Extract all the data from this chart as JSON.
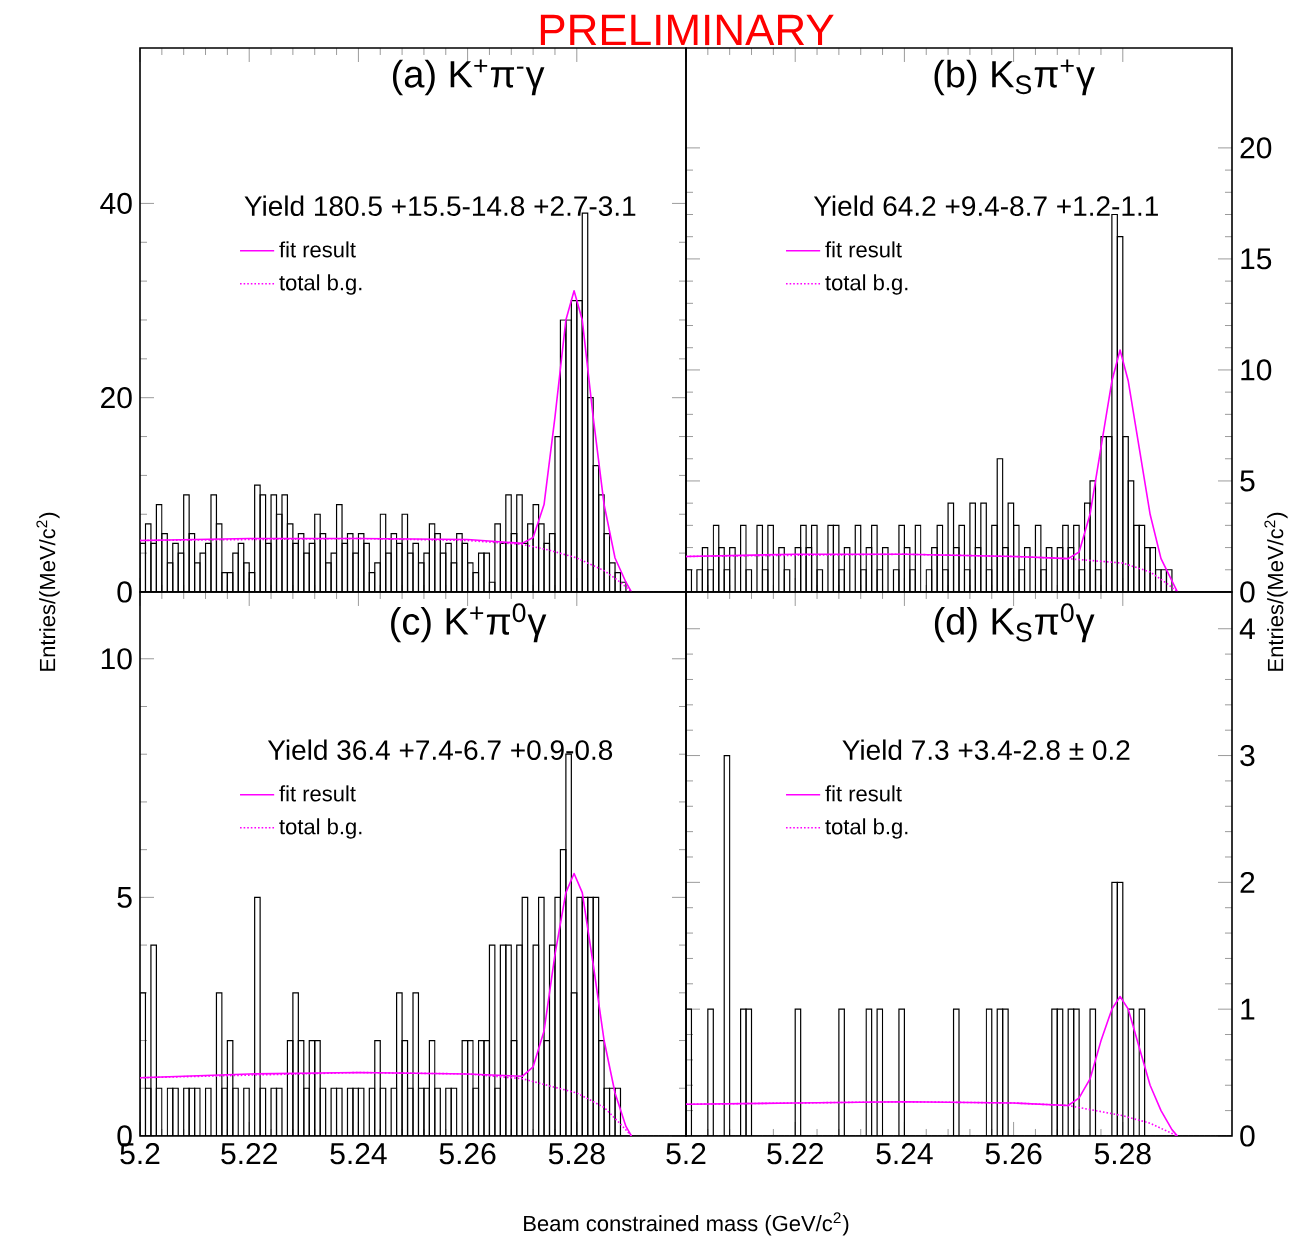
{
  "chart_data": [
    {
      "type": "histogram",
      "title": "(a) K$^{+}$π$^{-}$γ",
      "ylabel": "Entries/(MeV/c$^{2}$)",
      "annotations": [
        "Yield 180.5 +15.5-14.8 +2.7-3.1",
        "PRELIMINARY"
      ],
      "bins": [
        5.2,
        5.201,
        5.202,
        5.203,
        5.204,
        5.205,
        5.206,
        5.207,
        5.208,
        5.209,
        5.21,
        5.211,
        5.212,
        5.213,
        5.214,
        5.215,
        5.216,
        5.217,
        5.218,
        5.219,
        5.22,
        5.221,
        5.222,
        5.223,
        5.224,
        5.225,
        5.226,
        5.227,
        5.228,
        5.229,
        5.23,
        5.231,
        5.232,
        5.233,
        5.234,
        5.235,
        5.236,
        5.237,
        5.238,
        5.239,
        5.24,
        5.241,
        5.242,
        5.243,
        5.244,
        5.245,
        5.246,
        5.247,
        5.248,
        5.249,
        5.25,
        5.251,
        5.252,
        5.253,
        5.254,
        5.255,
        5.256,
        5.257,
        5.258,
        5.259,
        5.26,
        5.261,
        5.262,
        5.263,
        5.264,
        5.265,
        5.266,
        5.267,
        5.268,
        5.269,
        5.27,
        5.271,
        5.272,
        5.273,
        5.274,
        5.275,
        5.276,
        5.277,
        5.278,
        5.279,
        5.28,
        5.281,
        5.282,
        5.283,
        5.284,
        5.285,
        5.286,
        5.287,
        5.288,
        5.289,
        5.29,
        5.291,
        5.292,
        5.293,
        5.294,
        5.295,
        5.296,
        5.297,
        5.298,
        5.299,
        5.3
      ],
      "values": [
        5,
        7,
        5,
        9,
        6,
        3,
        5,
        4,
        10,
        6,
        3,
        4,
        5,
        10,
        7,
        2,
        2,
        4,
        5,
        3,
        2,
        11,
        10,
        5,
        10,
        8,
        10,
        7,
        5,
        6,
        4,
        5,
        8,
        6,
        3,
        4,
        9,
        5,
        6,
        4,
        6,
        5,
        2,
        3,
        8,
        4,
        6,
        5,
        8,
        4,
        5,
        3,
        4,
        7,
        6,
        4,
        5,
        3,
        6,
        5,
        3,
        2,
        4,
        4,
        1,
        7,
        5,
        10,
        6,
        10,
        5,
        7,
        9,
        7,
        5,
        6,
        16,
        28,
        28,
        30,
        30,
        39,
        20,
        13,
        10,
        6,
        3,
        2,
        1,
        0,
        0,
        0,
        0,
        0,
        0,
        0,
        0,
        0,
        0,
        0
      ],
      "color": "#000000",
      "series": [
        {
          "name": "fit result",
          "type": "line",
          "color": "#ff00ff",
          "line_style": "solid",
          "x": [
            5.2,
            5.22,
            5.24,
            5.26,
            5.27,
            5.272,
            5.274,
            5.276,
            5.278,
            5.2795,
            5.281,
            5.283,
            5.285,
            5.287,
            5.289,
            5.29
          ],
          "values": [
            5.3,
            5.5,
            5.5,
            5.4,
            5.0,
            5.6,
            9,
            18,
            28,
            31,
            28,
            18,
            9,
            3.5,
            1,
            0
          ]
        },
        {
          "name": "total b.g.",
          "type": "line",
          "color": "#ff00ff",
          "line_style": "dotted",
          "x": [
            5.2,
            5.24,
            5.26,
            5.27,
            5.275,
            5.28,
            5.285,
            5.288,
            5.29
          ],
          "values": [
            5.3,
            5.5,
            5.3,
            4.9,
            4.3,
            3.5,
            2.2,
            1,
            0
          ]
        }
      ],
      "xlim": [
        5.2,
        5.3
      ],
      "ylim": [
        0,
        56
      ],
      "xticks": [
        5.2,
        5.22,
        5.24,
        5.26,
        5.28
      ],
      "yticks": [
        0,
        20,
        40
      ],
      "tick_labels": "y",
      "legend": "top left"
    },
    {
      "type": "histogram",
      "title": "(b) K$_{S}$π$^{+}$γ",
      "ylabel": "Entries/(MeV/c$^{2}$)",
      "annotations": [
        "Yield 64.2 +9.4-8.7 +1.2-1.1"
      ],
      "bins": [
        5.2,
        5.201,
        5.202,
        5.203,
        5.204,
        5.205,
        5.206,
        5.207,
        5.208,
        5.209,
        5.21,
        5.211,
        5.212,
        5.213,
        5.214,
        5.215,
        5.216,
        5.217,
        5.218,
        5.219,
        5.22,
        5.221,
        5.222,
        5.223,
        5.224,
        5.225,
        5.226,
        5.227,
        5.228,
        5.229,
        5.23,
        5.231,
        5.232,
        5.233,
        5.234,
        5.235,
        5.236,
        5.237,
        5.238,
        5.239,
        5.24,
        5.241,
        5.242,
        5.243,
        5.244,
        5.245,
        5.246,
        5.247,
        5.248,
        5.249,
        5.25,
        5.251,
        5.252,
        5.253,
        5.254,
        5.255,
        5.256,
        5.257,
        5.258,
        5.259,
        5.26,
        5.261,
        5.262,
        5.263,
        5.264,
        5.265,
        5.266,
        5.267,
        5.268,
        5.269,
        5.27,
        5.271,
        5.272,
        5.273,
        5.274,
        5.275,
        5.276,
        5.277,
        5.278,
        5.279,
        5.28,
        5.281,
        5.282,
        5.283,
        5.284,
        5.285,
        5.286,
        5.287,
        5.288,
        5.289,
        5.29,
        5.291,
        5.292,
        5.293,
        5.294,
        5.295,
        5.296,
        5.297,
        5.298,
        5.299,
        5.3
      ],
      "values": [
        1,
        0,
        1,
        2,
        1,
        3,
        2,
        1,
        2,
        0,
        3,
        1,
        0,
        3,
        1,
        3,
        0,
        2,
        1,
        0,
        2,
        3,
        2,
        3,
        1,
        0,
        3,
        3,
        1,
        2,
        0,
        3,
        1,
        2,
        3,
        1,
        2,
        0,
        1,
        3,
        2,
        1,
        3,
        0,
        1,
        2,
        3,
        1,
        4,
        2,
        3,
        1,
        4,
        2,
        4,
        1,
        3,
        6,
        2,
        4,
        3,
        1,
        2,
        0,
        3,
        1,
        2,
        0,
        2,
        3,
        2,
        3,
        1,
        4,
        5,
        1,
        7,
        7,
        17,
        16,
        7,
        5,
        3,
        3,
        2,
        2,
        1,
        1,
        1,
        0,
        0,
        0,
        0,
        0,
        0,
        0,
        0,
        0,
        0,
        0
      ],
      "color": "#000000",
      "series": [
        {
          "name": "fit result",
          "type": "line",
          "color": "#ff00ff",
          "line_style": "solid",
          "x": [
            5.2,
            5.22,
            5.24,
            5.26,
            5.27,
            5.272,
            5.274,
            5.276,
            5.278,
            5.2795,
            5.281,
            5.283,
            5.285,
            5.287,
            5.289,
            5.29
          ],
          "values": [
            1.6,
            1.7,
            1.7,
            1.6,
            1.5,
            1.8,
            3.5,
            6.5,
            9.5,
            10.9,
            9.5,
            6.5,
            3.5,
            1.5,
            0.5,
            0
          ]
        },
        {
          "name": "total b.g.",
          "type": "line",
          "color": "#ff00ff",
          "line_style": "dotted",
          "x": [
            5.2,
            5.24,
            5.26,
            5.27,
            5.275,
            5.28,
            5.285,
            5.288,
            5.29
          ],
          "values": [
            1.6,
            1.7,
            1.6,
            1.5,
            1.4,
            1.3,
            0.9,
            0.4,
            0
          ]
        }
      ],
      "xlim": [
        5.2,
        5.3
      ],
      "ylim": [
        0,
        24.5
      ],
      "xticks": [
        5.2,
        5.22,
        5.24,
        5.26,
        5.28
      ],
      "yticks": [
        0,
        5,
        10,
        15,
        20
      ],
      "tick_labels": "y",
      "legend": "top left"
    },
    {
      "type": "histogram",
      "title": "(c) K$^{+}$π$^{0}$γ",
      "xlabel": "Beam constrained mass (GeV/c$^{2}$)",
      "annotations": [
        "Yield 36.4 +7.4-6.7 +0.9-0.8"
      ],
      "bins": [
        5.2,
        5.201,
        5.202,
        5.203,
        5.204,
        5.205,
        5.206,
        5.207,
        5.208,
        5.209,
        5.21,
        5.211,
        5.212,
        5.213,
        5.214,
        5.215,
        5.216,
        5.217,
        5.218,
        5.219,
        5.22,
        5.221,
        5.222,
        5.223,
        5.224,
        5.225,
        5.226,
        5.227,
        5.228,
        5.229,
        5.23,
        5.231,
        5.232,
        5.233,
        5.234,
        5.235,
        5.236,
        5.237,
        5.238,
        5.239,
        5.24,
        5.241,
        5.242,
        5.243,
        5.244,
        5.245,
        5.246,
        5.247,
        5.248,
        5.249,
        5.25,
        5.251,
        5.252,
        5.253,
        5.254,
        5.255,
        5.256,
        5.257,
        5.258,
        5.259,
        5.26,
        5.261,
        5.262,
        5.263,
        5.264,
        5.265,
        5.266,
        5.267,
        5.268,
        5.269,
        5.27,
        5.271,
        5.272,
        5.273,
        5.274,
        5.275,
        5.276,
        5.277,
        5.278,
        5.279,
        5.28,
        5.281,
        5.282,
        5.283,
        5.284,
        5.285,
        5.286,
        5.287,
        5.288,
        5.289,
        5.29,
        5.291,
        5.292,
        5.293,
        5.294,
        5.295,
        5.296,
        5.297,
        5.298,
        5.299,
        5.3
      ],
      "values": [
        3,
        1,
        4,
        1,
        0,
        1,
        1,
        0,
        1,
        1,
        1,
        0,
        1,
        0,
        3,
        1,
        2,
        1,
        0,
        1,
        0,
        5,
        1,
        0,
        1,
        1,
        0,
        2,
        3,
        2,
        1,
        2,
        2,
        1,
        0,
        1,
        1,
        0,
        1,
        1,
        1,
        0,
        1,
        2,
        1,
        0,
        1,
        3,
        2,
        1,
        3,
        1,
        1,
        2,
        1,
        0,
        1,
        1,
        0,
        2,
        2,
        1,
        2,
        2,
        4,
        1,
        4,
        4,
        2,
        4,
        5,
        0,
        4,
        5,
        2,
        4,
        5,
        6,
        8,
        3,
        5,
        5,
        5,
        5,
        2,
        1,
        1,
        1,
        0,
        0,
        0,
        0,
        0,
        0,
        0,
        0,
        0,
        0,
        0,
        0
      ],
      "color": "#000000",
      "series": [
        {
          "name": "fit result",
          "type": "line",
          "color": "#ff00ff",
          "line_style": "solid",
          "x": [
            5.2,
            5.22,
            5.24,
            5.26,
            5.27,
            5.272,
            5.274,
            5.276,
            5.278,
            5.2795,
            5.281,
            5.283,
            5.285,
            5.287,
            5.289,
            5.29
          ],
          "values": [
            1.22,
            1.3,
            1.33,
            1.3,
            1.25,
            1.45,
            2.2,
            3.8,
            5.1,
            5.5,
            5.1,
            3.6,
            2.0,
            0.9,
            0.2,
            0
          ]
        },
        {
          "name": "total b.g.",
          "type": "line",
          "color": "#ff00ff",
          "line_style": "dotted",
          "x": [
            5.2,
            5.24,
            5.26,
            5.27,
            5.275,
            5.28,
            5.285,
            5.288,
            5.29
          ],
          "values": [
            1.22,
            1.33,
            1.3,
            1.2,
            1.05,
            0.9,
            0.6,
            0.25,
            0
          ]
        }
      ],
      "xlim": [
        5.2,
        5.3
      ],
      "ylim": [
        0,
        11.4
      ],
      "xticks": [
        5.2,
        5.22,
        5.24,
        5.26,
        5.28
      ],
      "yticks": [
        0,
        5,
        10
      ],
      "legend": "top left"
    },
    {
      "type": "histogram",
      "title": "(d) K$_{S}$π$^{0}$γ",
      "annotations": [
        "Yield 7.3 +3.4-2.8 ± 0.2"
      ],
      "bins": [
        5.2,
        5.201,
        5.202,
        5.203,
        5.204,
        5.205,
        5.206,
        5.207,
        5.208,
        5.209,
        5.21,
        5.211,
        5.212,
        5.213,
        5.214,
        5.215,
        5.216,
        5.217,
        5.218,
        5.219,
        5.22,
        5.221,
        5.222,
        5.223,
        5.224,
        5.225,
        5.226,
        5.227,
        5.228,
        5.229,
        5.23,
        5.231,
        5.232,
        5.233,
        5.234,
        5.235,
        5.236,
        5.237,
        5.238,
        5.239,
        5.24,
        5.241,
        5.242,
        5.243,
        5.244,
        5.245,
        5.246,
        5.247,
        5.248,
        5.249,
        5.25,
        5.251,
        5.252,
        5.253,
        5.254,
        5.255,
        5.256,
        5.257,
        5.258,
        5.259,
        5.26,
        5.261,
        5.262,
        5.263,
        5.264,
        5.265,
        5.266,
        5.267,
        5.268,
        5.269,
        5.27,
        5.271,
        5.272,
        5.273,
        5.274,
        5.275,
        5.276,
        5.277,
        5.278,
        5.279,
        5.28,
        5.281,
        5.282,
        5.283,
        5.284,
        5.285,
        5.286,
        5.287,
        5.288,
        5.289,
        5.29,
        5.291,
        5.292,
        5.293,
        5.294,
        5.295,
        5.296,
        5.297,
        5.298,
        5.299,
        5.3
      ],
      "values": [
        1,
        0,
        0,
        0,
        1,
        0,
        0,
        3,
        0,
        0,
        1,
        1,
        0,
        0,
        0,
        0,
        0,
        0,
        0,
        0,
        1,
        0,
        0,
        0,
        0,
        0,
        0,
        0,
        1,
        0,
        0,
        0,
        0,
        1,
        0,
        1,
        0,
        0,
        0,
        1,
        0,
        0,
        0,
        0,
        0,
        0,
        0,
        0,
        0,
        1,
        0,
        0,
        0,
        0,
        0,
        1,
        0,
        1,
        1,
        0,
        0,
        0,
        0,
        0,
        0,
        0,
        0,
        1,
        1,
        0,
        1,
        1,
        0,
        0,
        1,
        0,
        0,
        0,
        2,
        2,
        0,
        1,
        0,
        1,
        0,
        0,
        0,
        0,
        0,
        0,
        0,
        0,
        0,
        0,
        0,
        0,
        0,
        0,
        0,
        0
      ],
      "color": "#000000",
      "series": [
        {
          "name": "fit result",
          "type": "line",
          "color": "#ff00ff",
          "line_style": "solid",
          "x": [
            5.2,
            5.22,
            5.24,
            5.26,
            5.27,
            5.272,
            5.274,
            5.276,
            5.278,
            5.2795,
            5.281,
            5.283,
            5.285,
            5.287,
            5.289,
            5.29
          ],
          "values": [
            0.25,
            0.26,
            0.27,
            0.26,
            0.24,
            0.3,
            0.45,
            0.75,
            1.0,
            1.1,
            1.0,
            0.7,
            0.4,
            0.2,
            0.05,
            0
          ]
        },
        {
          "name": "total b.g.",
          "type": "line",
          "color": "#ff00ff",
          "line_style": "dotted",
          "x": [
            5.2,
            5.24,
            5.26,
            5.27,
            5.275,
            5.28,
            5.285,
            5.288,
            5.29
          ],
          "values": [
            0.25,
            0.27,
            0.26,
            0.24,
            0.2,
            0.16,
            0.1,
            0.04,
            0
          ]
        }
      ],
      "xlim": [
        5.2,
        5.3
      ],
      "ylim": [
        0,
        4.29
      ],
      "xticks": [
        5.2,
        5.22,
        5.24,
        5.26,
        5.28
      ],
      "yticks": [
        0,
        1,
        2,
        3,
        4
      ],
      "legend": "top left"
    }
  ]
}
